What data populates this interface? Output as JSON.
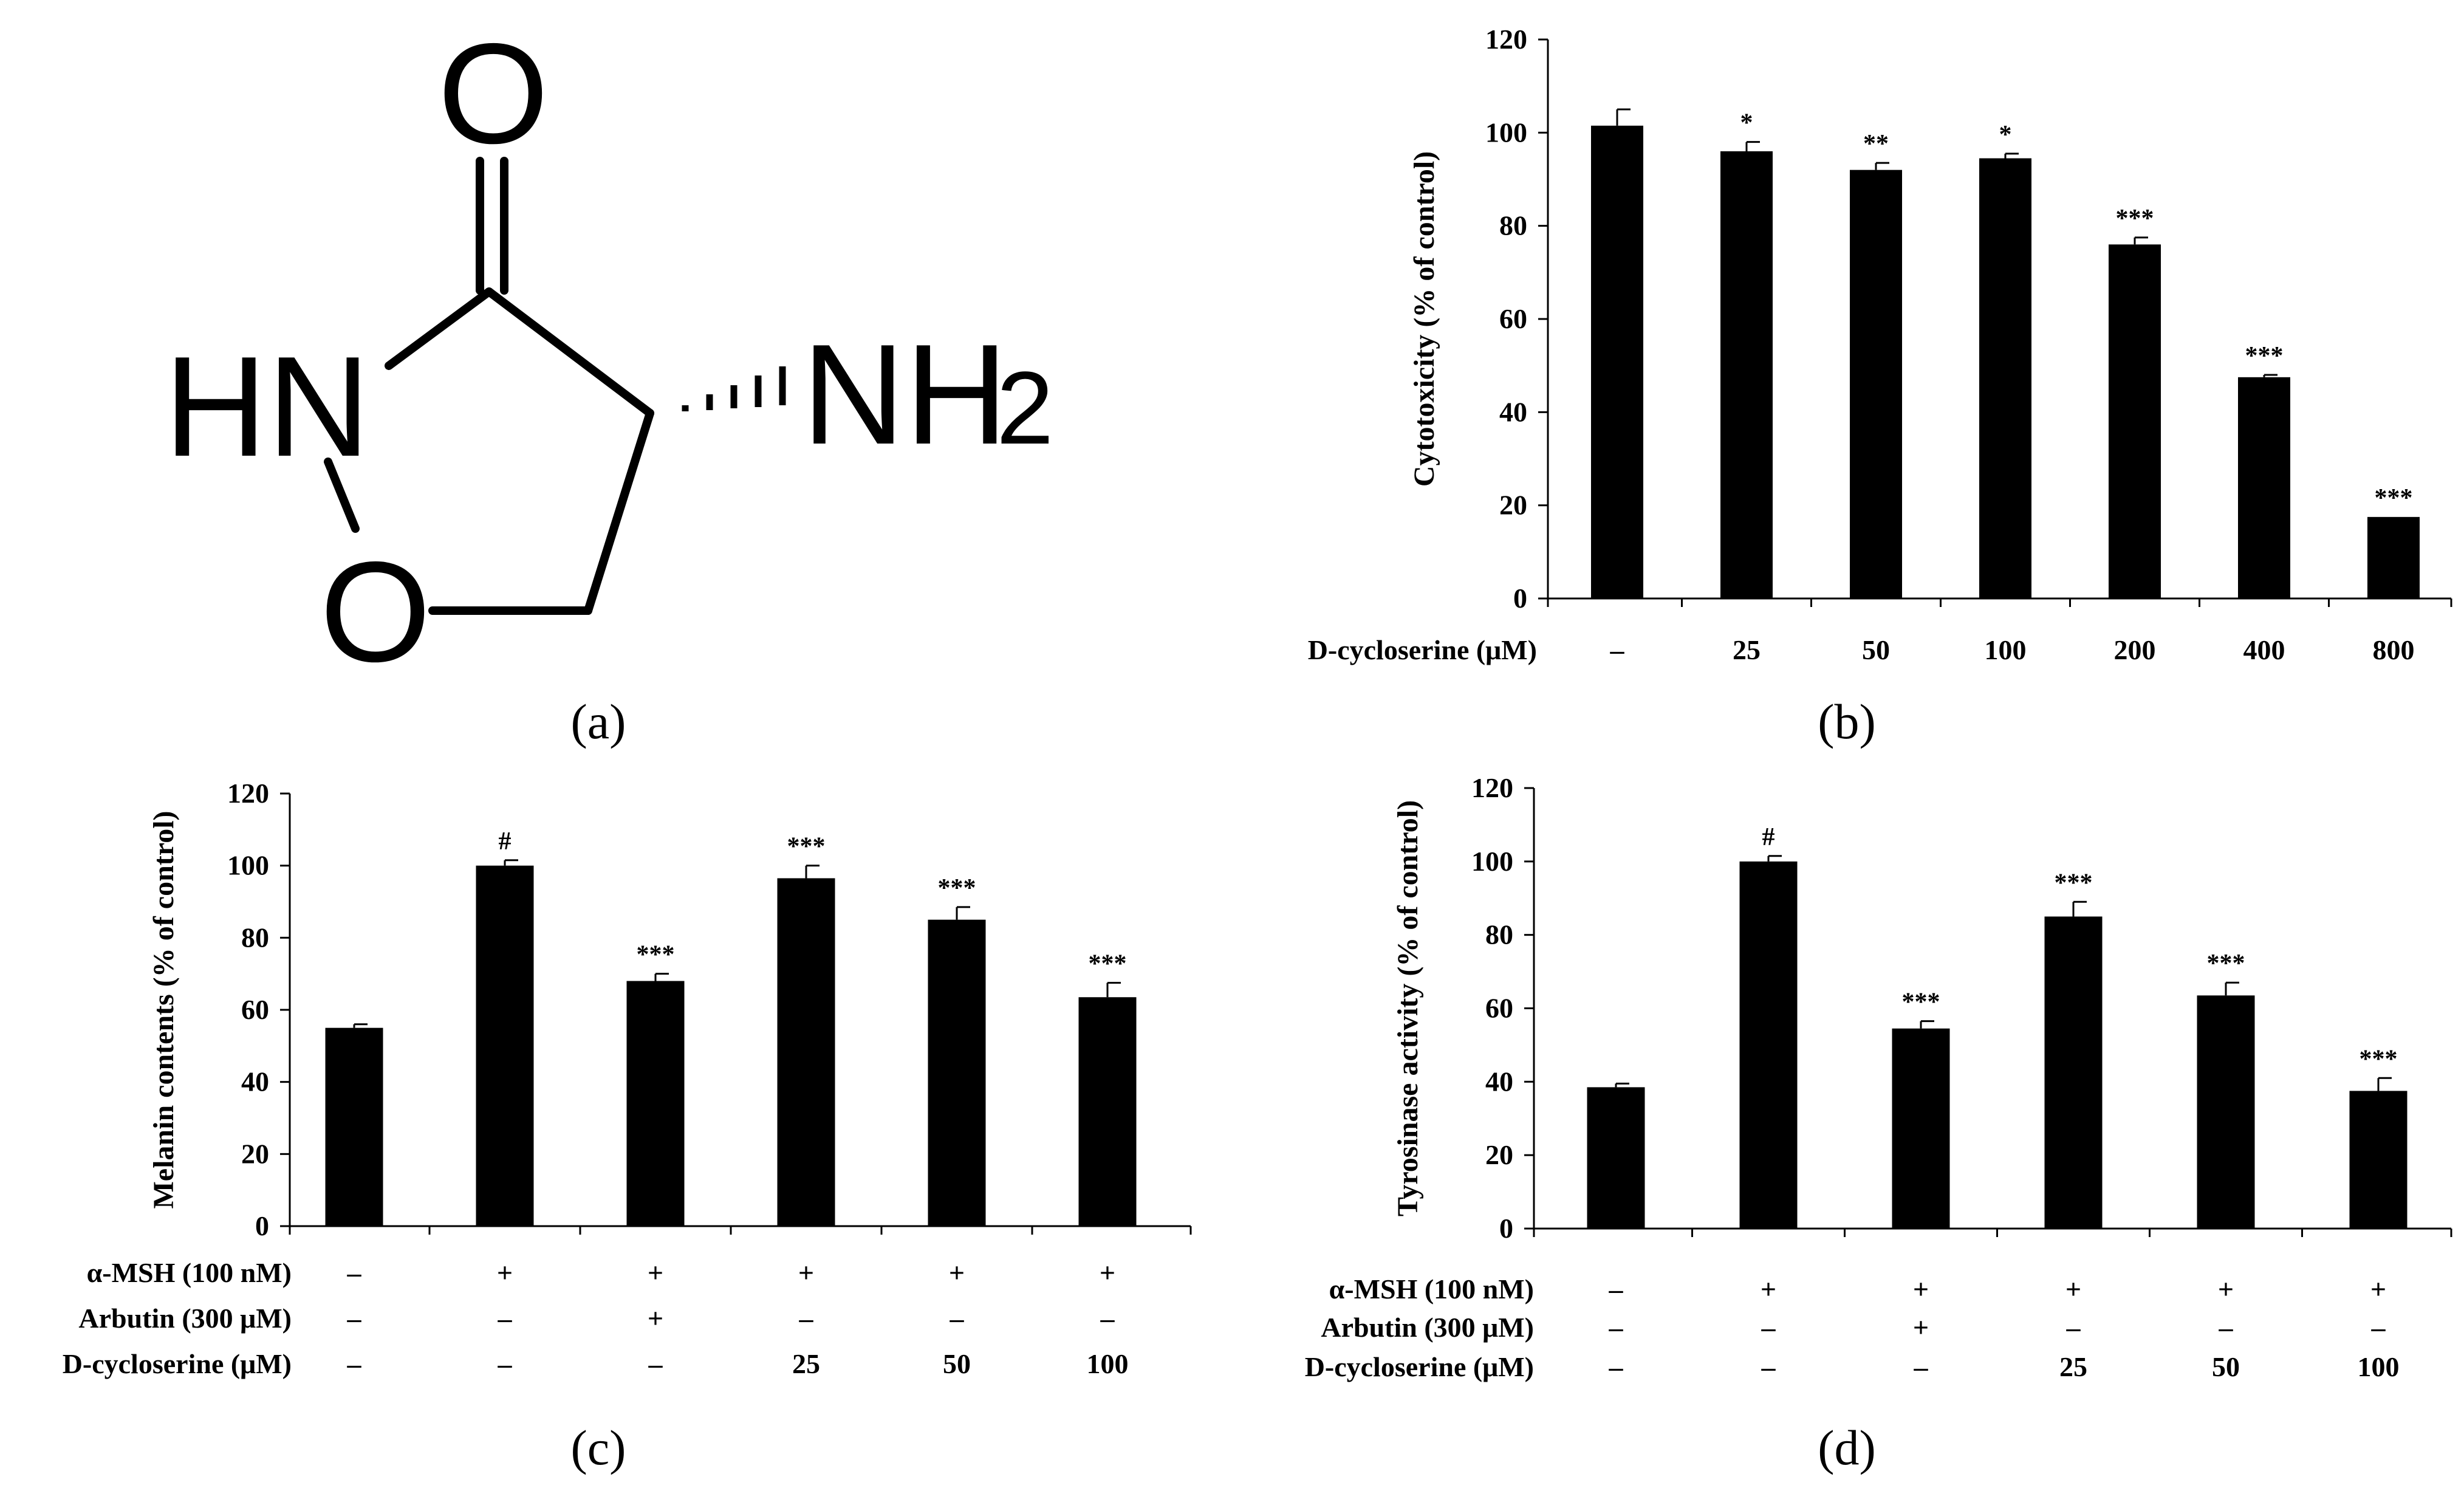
{
  "panels": {
    "a": {
      "label": "(a)",
      "atoms": {
        "O": "O",
        "HN": "HN",
        "O_ring": "O",
        "NH": "NH",
        "sub2": "2"
      }
    },
    "b": {
      "label": "(b)"
    },
    "c": {
      "label": "(c)"
    },
    "d": {
      "label": "(d)"
    }
  },
  "chart_data": [
    {
      "panel": "b",
      "type": "bar",
      "ylabel": "Cytotoxicity  (% of control)",
      "ylim": [
        0,
        120
      ],
      "yticks": [
        "0",
        "20",
        "40",
        "60",
        "80",
        "100",
        "120"
      ],
      "row_labels": [
        "D-cycloserine (μM)"
      ],
      "rows": [
        [
          "–",
          "25",
          "50",
          "100",
          "200",
          "400",
          "800"
        ]
      ],
      "values": [
        101.5,
        96,
        92,
        94.5,
        76,
        47.5,
        17.5
      ],
      "errors": [
        3.5,
        2,
        1.5,
        1,
        1.5,
        0.5,
        0
      ],
      "annotations": [
        "",
        "*",
        "**",
        "*",
        "***",
        "***",
        "***"
      ],
      "bar_color": "#000000"
    },
    {
      "panel": "c",
      "type": "bar",
      "ylabel": "Melanin contents (% of control)",
      "ylim": [
        0,
        120
      ],
      "yticks": [
        "0",
        "20",
        "40",
        "60",
        "80",
        "100",
        "120"
      ],
      "row_labels": [
        "α-MSH (100 nM)",
        "Arbutin (300 μM)",
        "D-cycloserine (μM)"
      ],
      "rows": [
        [
          "–",
          "+",
          "+",
          "+",
          "+",
          "+"
        ],
        [
          "–",
          "–",
          "+",
          "–",
          "–",
          "–"
        ],
        [
          "–",
          "–",
          "–",
          "25",
          "50",
          "100"
        ]
      ],
      "values": [
        55,
        100,
        68,
        96.5,
        85,
        63.5
      ],
      "errors": [
        1,
        1.5,
        2,
        3.5,
        3.5,
        4
      ],
      "annotations": [
        "",
        "#",
        "***",
        "***",
        "***",
        "***"
      ],
      "bar_color": "#000000"
    },
    {
      "panel": "d",
      "type": "bar",
      "ylabel": "Tyrosinase activity (% of control)",
      "ylim": [
        0,
        120
      ],
      "yticks": [
        "0",
        "20",
        "40",
        "60",
        "80",
        "100",
        "120"
      ],
      "row_labels": [
        "α-MSH (100 nM)",
        "Arbutin (300 μM)",
        "D-cycloserine (μM)"
      ],
      "rows": [
        [
          "–",
          "+",
          "+",
          "+",
          "+",
          "+"
        ],
        [
          "–",
          "–",
          "+",
          "–",
          "–",
          "–"
        ],
        [
          "–",
          "–",
          "–",
          "25",
          "50",
          "100"
        ]
      ],
      "values": [
        38.5,
        100,
        54.5,
        85,
        63.5,
        37.5
      ],
      "errors": [
        1,
        1.5,
        2,
        4,
        3.5,
        3.5
      ],
      "annotations": [
        "",
        "#",
        "***",
        "***",
        "***",
        "***"
      ],
      "bar_color": "#000000"
    }
  ]
}
